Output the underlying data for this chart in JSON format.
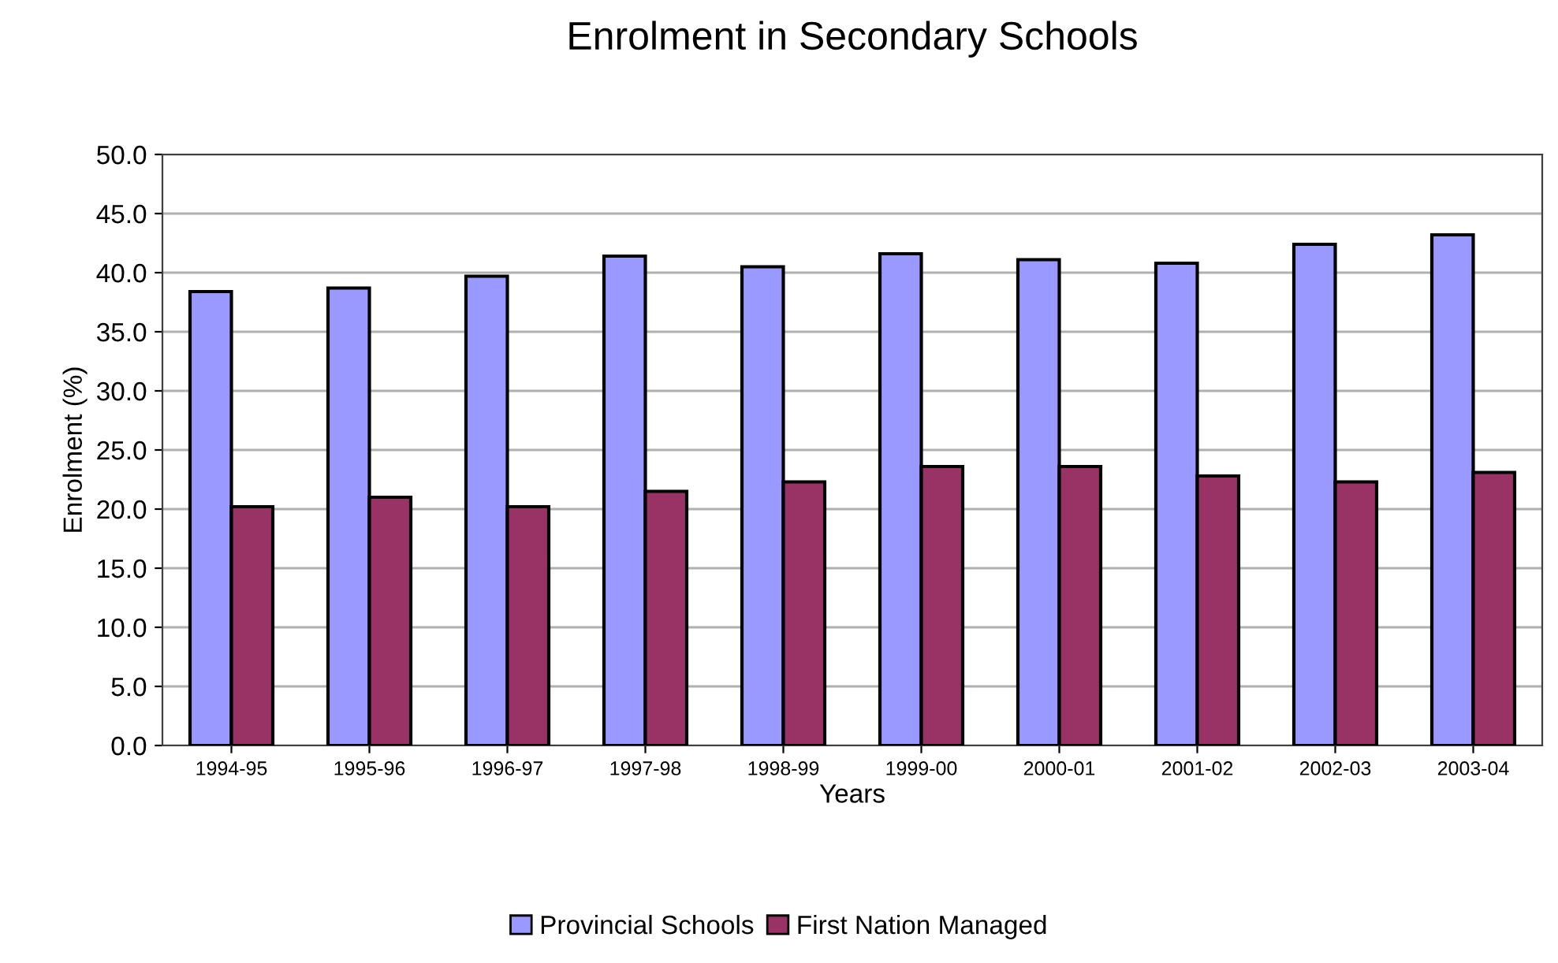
{
  "chart_data": {
    "type": "bar",
    "title": "Enrolment in Secondary Schools",
    "xlabel": "Years",
    "ylabel": "Enrolment (%)",
    "categories": [
      "1994-95",
      "1995-96",
      "1996-97",
      "1997-98",
      "1998-99",
      "1999-00",
      "2000-01",
      "2001-02",
      "2002-03",
      "2003-04"
    ],
    "series": [
      {
        "name": "Provincial Schools",
        "color": "#9999ff",
        "values": [
          38.4,
          38.7,
          39.7,
          41.4,
          40.5,
          41.6,
          41.1,
          40.8,
          42.4,
          43.2
        ]
      },
      {
        "name": "First Nation Managed",
        "color": "#993366",
        "values": [
          20.2,
          21.0,
          20.2,
          21.5,
          22.3,
          23.6,
          23.6,
          22.8,
          22.3,
          23.1
        ]
      }
    ],
    "ylim": [
      0,
      50
    ],
    "yticks": [
      {
        "value": 0,
        "label": "0.0"
      },
      {
        "value": 5,
        "label": "5.0"
      },
      {
        "value": 10,
        "label": "10.0"
      },
      {
        "value": 15,
        "label": "15.0"
      },
      {
        "value": 20,
        "label": "20.0"
      },
      {
        "value": 25,
        "label": "25.0"
      },
      {
        "value": 30,
        "label": "30.0"
      },
      {
        "value": 35,
        "label": "35.0"
      },
      {
        "value": 40,
        "label": "40.0"
      },
      {
        "value": 45,
        "label": "45.0"
      },
      {
        "value": 50,
        "label": "50.0"
      }
    ],
    "grid": "y",
    "legend": "bottom"
  }
}
